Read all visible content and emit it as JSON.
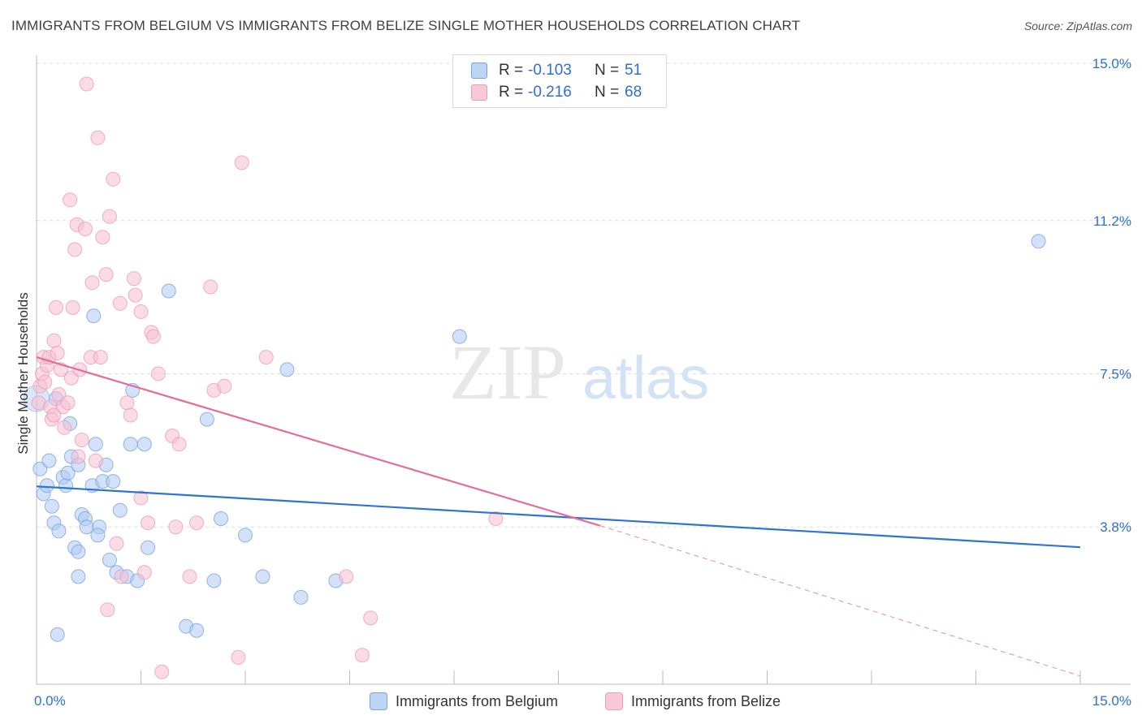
{
  "title": "IMMIGRANTS FROM BELGIUM VS IMMIGRANTS FROM BELIZE SINGLE MOTHER HOUSEHOLDS CORRELATION CHART",
  "source": "Source: ZipAtlas.com",
  "watermark": {
    "zip": "ZIP",
    "atlas": "atlas"
  },
  "colors": {
    "belgium_fill": "#aecbf2",
    "belgium_stroke": "#7aa3e0",
    "belgium_line": "#2e74d0",
    "belize_fill": "#f8c0d2",
    "belize_stroke": "#ec9cb8",
    "belize_line": "#e26c9a",
    "value_text": "#2e6fd0",
    "grid": "#dddddd"
  },
  "legend": {
    "rows": [
      {
        "r_label": "R =",
        "r_value": "-0.103",
        "n_label": "N =",
        "n_value": "51"
      },
      {
        "r_label": "R =",
        "r_value": "-0.216",
        "n_label": "N =",
        "n_value": "68"
      }
    ]
  },
  "bottom_legend": {
    "belgium": "Immigrants from Belgium",
    "belize": "Immigrants from Belize"
  },
  "chart_data": {
    "type": "scatter",
    "title": "IMMIGRANTS FROM BELGIUM VS IMMIGRANTS FROM BELIZE SINGLE MOTHER HOUSEHOLDS CORRELATION CHART",
    "xlabel": "",
    "ylabel": "Single Mother Households",
    "xlim": [
      0,
      15
    ],
    "ylim": [
      0,
      15.0
    ],
    "x_tick_labels": [
      "0.0%",
      "15.0%"
    ],
    "y_ticks": [
      3.8,
      7.5,
      11.2,
      15.0
    ],
    "y_tick_labels": [
      "3.8%",
      "7.5%",
      "11.2%",
      "15.0%"
    ],
    "grid": true,
    "series": [
      {
        "name": "Immigrants from Belgium",
        "color": "#aecbf2",
        "x": [
          0.05,
          0.1,
          0.15,
          0.18,
          0.22,
          0.25,
          0.32,
          0.38,
          0.42,
          0.45,
          0.5,
          0.55,
          0.6,
          0.6,
          0.65,
          0.7,
          0.72,
          0.8,
          0.82,
          0.85,
          0.9,
          0.95,
          1.0,
          1.05,
          1.1,
          1.15,
          1.2,
          1.3,
          1.35,
          1.38,
          1.45,
          1.55,
          1.6,
          1.9,
          2.15,
          2.3,
          2.45,
          2.55,
          2.65,
          3.0,
          3.25,
          3.6,
          3.8,
          4.3,
          6.08,
          14.4,
          0.3,
          0.6,
          0.88,
          0.28,
          0.48
        ],
        "y": [
          5.2,
          4.6,
          4.8,
          5.4,
          4.3,
          3.9,
          3.7,
          5.0,
          4.8,
          5.1,
          5.5,
          3.3,
          3.2,
          2.6,
          4.1,
          4.0,
          3.8,
          4.8,
          8.9,
          5.8,
          3.8,
          4.9,
          5.3,
          3.0,
          4.9,
          2.7,
          4.2,
          2.6,
          5.8,
          7.1,
          2.5,
          5.8,
          3.3,
          9.5,
          1.4,
          1.3,
          6.4,
          2.5,
          4.0,
          3.6,
          2.6,
          7.6,
          2.1,
          2.5,
          8.4,
          10.7,
          1.2,
          5.3,
          3.6,
          6.9,
          6.3
        ]
      },
      {
        "name": "Immigrants from Belize",
        "color": "#f8c0d2",
        "x": [
          0.03,
          0.05,
          0.08,
          0.1,
          0.12,
          0.15,
          0.18,
          0.2,
          0.22,
          0.25,
          0.28,
          0.3,
          0.32,
          0.35,
          0.38,
          0.4,
          0.45,
          0.48,
          0.5,
          0.52,
          0.55,
          0.58,
          0.6,
          0.62,
          0.65,
          0.7,
          0.72,
          0.78,
          0.8,
          0.85,
          0.88,
          0.92,
          0.95,
          1.0,
          1.02,
          1.05,
          1.1,
          1.15,
          1.2,
          1.22,
          1.3,
          1.35,
          1.4,
          1.42,
          1.5,
          1.55,
          1.6,
          1.65,
          1.68,
          1.75,
          1.8,
          1.95,
          2.0,
          2.05,
          2.2,
          2.3,
          2.5,
          2.55,
          2.7,
          2.9,
          2.95,
          3.3,
          4.45,
          4.68,
          4.8,
          6.6,
          0.25,
          1.5
        ],
        "y": [
          6.8,
          7.2,
          7.5,
          7.9,
          7.3,
          7.7,
          7.9,
          6.7,
          6.4,
          8.3,
          9.1,
          8.0,
          7.0,
          7.6,
          6.7,
          6.2,
          6.8,
          11.7,
          7.4,
          9.1,
          10.5,
          11.1,
          5.5,
          7.6,
          5.9,
          11.0,
          14.5,
          7.9,
          9.7,
          5.4,
          13.2,
          7.9,
          10.8,
          9.9,
          1.8,
          11.3,
          12.2,
          3.4,
          9.2,
          2.6,
          6.8,
          6.5,
          9.8,
          9.4,
          4.5,
          2.7,
          3.9,
          8.5,
          8.4,
          7.5,
          0.3,
          6.0,
          3.8,
          5.8,
          2.6,
          3.9,
          9.6,
          7.1,
          7.2,
          0.65,
          12.6,
          7.9,
          2.6,
          0.7,
          1.6,
          4.0,
          6.5,
          9.0
        ]
      }
    ],
    "trend_lines": [
      {
        "series": "Immigrants from Belgium",
        "x": [
          0,
          15
        ],
        "y": [
          4.78,
          3.31
        ]
      },
      {
        "series": "Immigrants from Belize",
        "x": [
          0,
          8.1
        ],
        "y": [
          7.9,
          3.83
        ],
        "dashed_extension": {
          "x": [
            8.1,
            15
          ],
          "y": [
            3.83,
            0.2
          ]
        }
      }
    ]
  }
}
